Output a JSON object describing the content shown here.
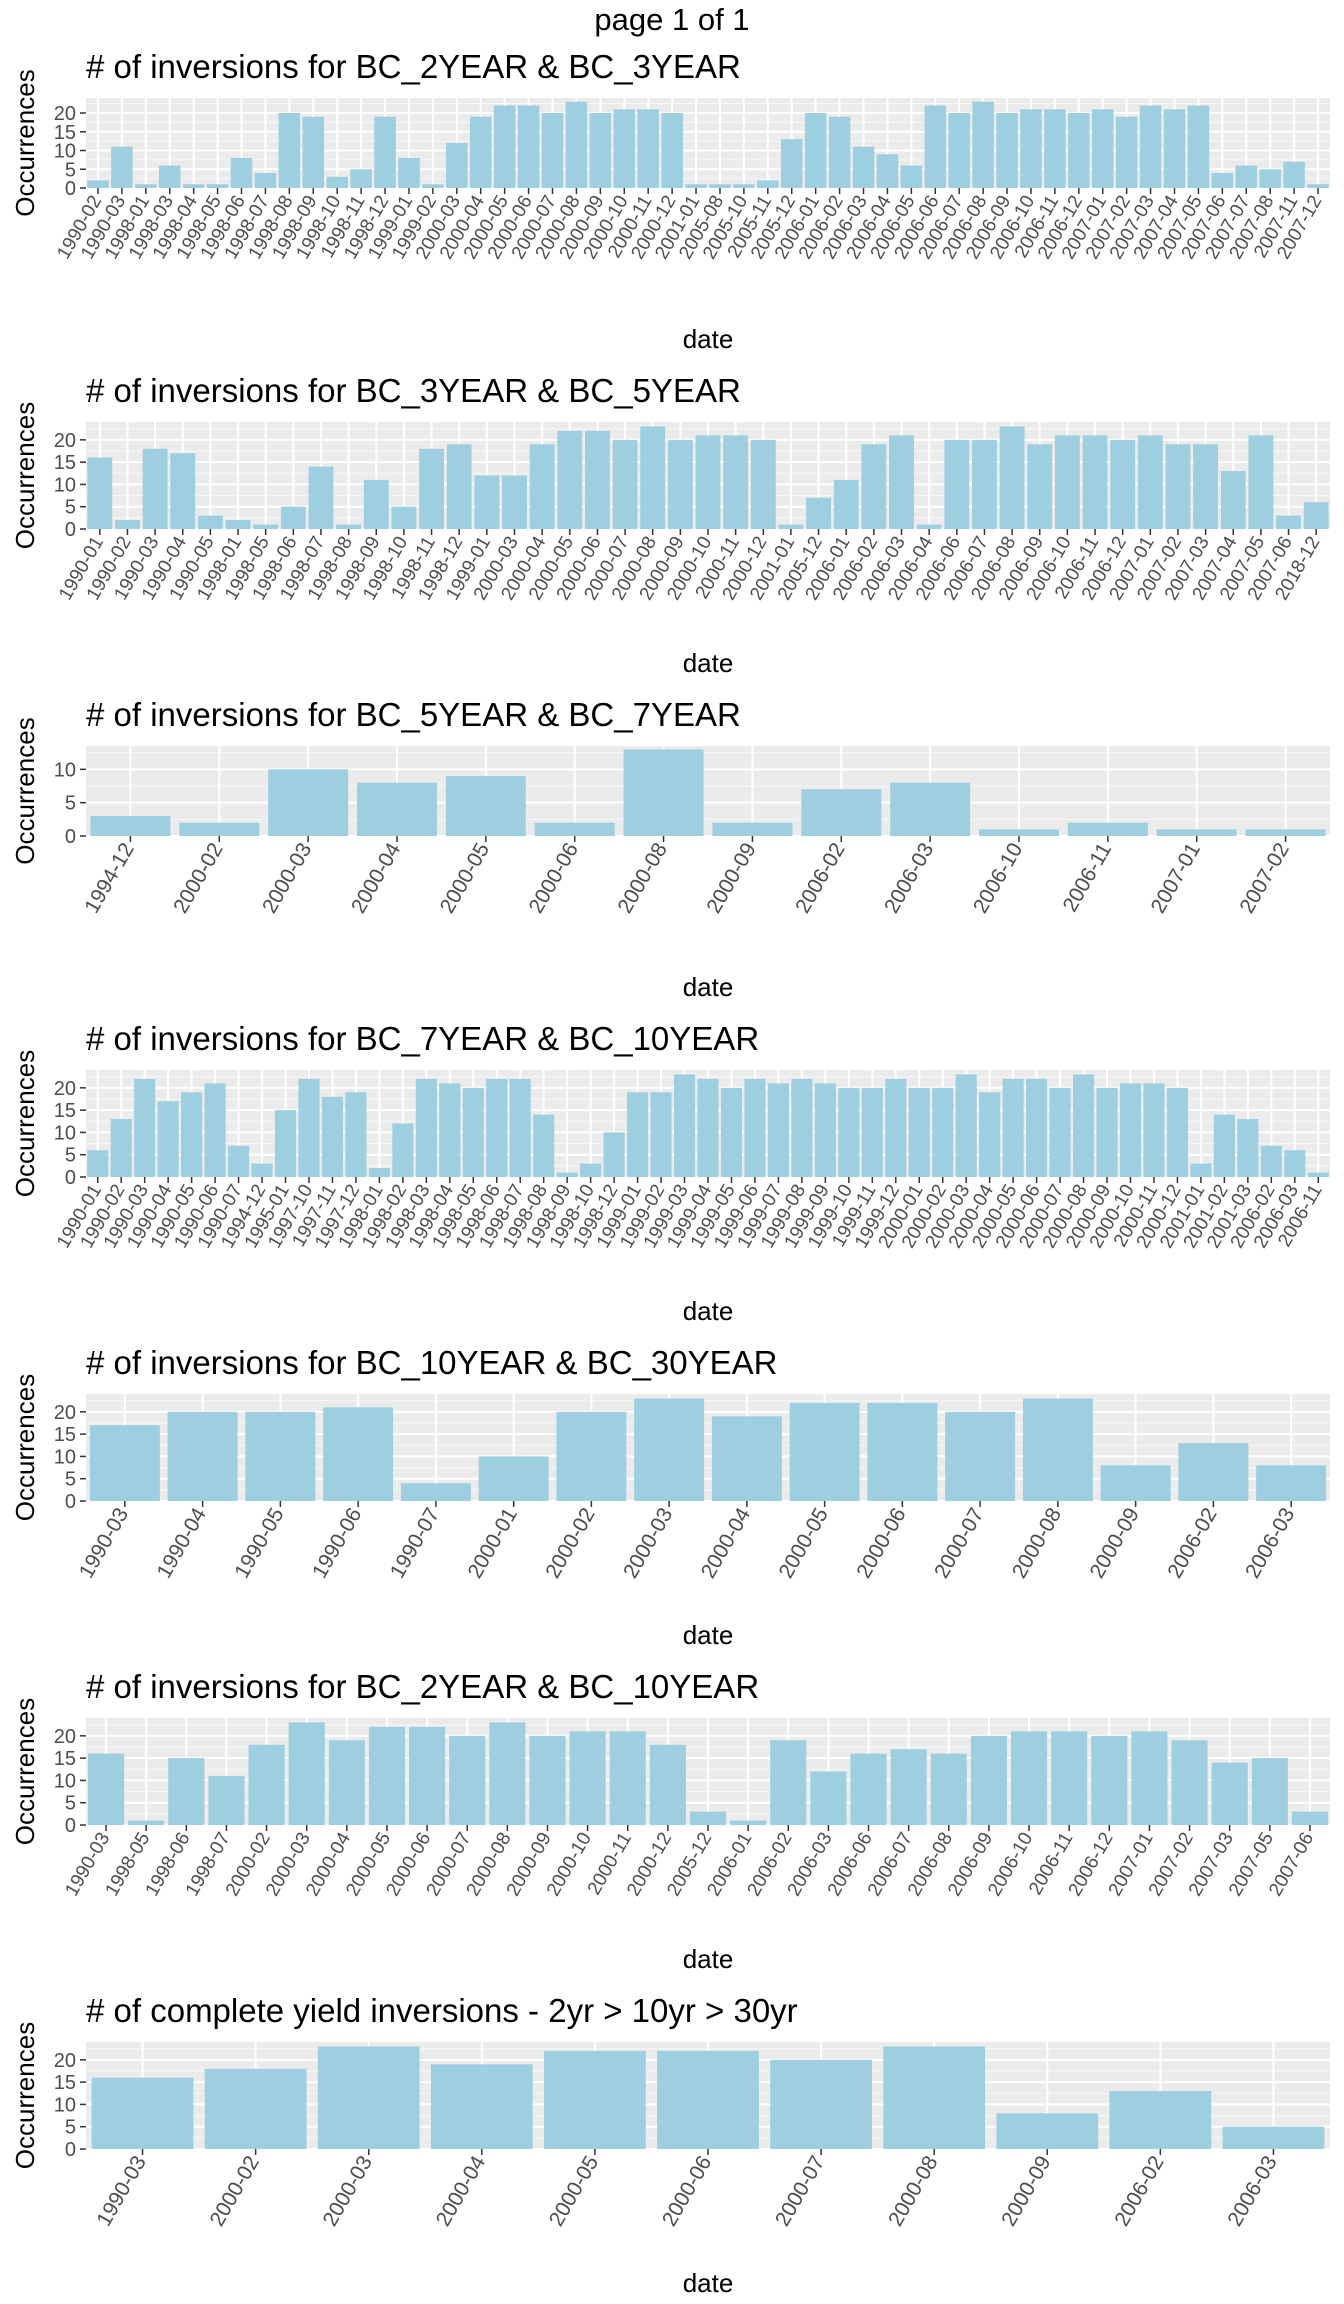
{
  "page": {
    "title": "page 1 of 1"
  },
  "chart_data": [
    {
      "type": "bar",
      "title": "# of inversions for BC_2YEAR & BC_3YEAR",
      "xlabel": "date",
      "ylabel": "Occurrences",
      "ylim": [
        0,
        24
      ],
      "yticks": [
        0,
        5,
        10,
        15,
        20
      ],
      "categories": [
        "1990-02",
        "1990-03",
        "1998-01",
        "1998-03",
        "1998-04",
        "1998-05",
        "1998-06",
        "1998-07",
        "1998-08",
        "1998-09",
        "1998-10",
        "1998-11",
        "1998-12",
        "1999-01",
        "1999-02",
        "2000-03",
        "2000-04",
        "2000-05",
        "2000-06",
        "2000-07",
        "2000-08",
        "2000-09",
        "2000-10",
        "2000-11",
        "2000-12",
        "2001-01",
        "2005-08",
        "2005-10",
        "2005-11",
        "2005-12",
        "2006-01",
        "2006-02",
        "2006-03",
        "2006-04",
        "2006-05",
        "2006-06",
        "2006-07",
        "2006-08",
        "2006-09",
        "2006-10",
        "2006-11",
        "2006-12",
        "2007-01",
        "2007-02",
        "2007-03",
        "2007-04",
        "2007-05",
        "2007-06",
        "2007-07",
        "2007-08",
        "2007-11",
        "2007-12"
      ],
      "values": [
        2,
        11,
        1,
        6,
        1,
        1,
        8,
        4,
        20,
        19,
        3,
        5,
        19,
        8,
        1,
        12,
        19,
        22,
        22,
        20,
        23,
        20,
        21,
        21,
        20,
        1,
        1,
        1,
        2,
        13,
        20,
        19,
        11,
        9,
        6,
        22,
        20,
        23,
        20,
        21,
        21,
        20,
        21,
        19,
        22,
        21,
        22,
        4,
        6,
        5,
        7,
        1
      ],
      "grid": true,
      "bar_color": "#9ecfe0",
      "panel_background": "#ebebeb"
    },
    {
      "type": "bar",
      "title": "# of inversions for BC_3YEAR & BC_5YEAR",
      "xlabel": "date",
      "ylabel": "Occurrences",
      "ylim": [
        0,
        24
      ],
      "yticks": [
        0,
        5,
        10,
        15,
        20
      ],
      "categories": [
        "1990-01",
        "1990-02",
        "1990-03",
        "1990-04",
        "1990-05",
        "1998-01",
        "1998-05",
        "1998-06",
        "1998-07",
        "1998-08",
        "1998-09",
        "1998-10",
        "1998-11",
        "1998-12",
        "1999-01",
        "2000-03",
        "2000-04",
        "2000-05",
        "2000-06",
        "2000-07",
        "2000-08",
        "2000-09",
        "2000-10",
        "2000-11",
        "2000-12",
        "2001-01",
        "2005-12",
        "2006-01",
        "2006-02",
        "2006-03",
        "2006-04",
        "2006-06",
        "2006-07",
        "2006-08",
        "2006-09",
        "2006-10",
        "2006-11",
        "2006-12",
        "2007-01",
        "2007-02",
        "2007-03",
        "2007-04",
        "2007-05",
        "2007-06",
        "2018-12"
      ],
      "values": [
        16,
        2,
        18,
        17,
        3,
        2,
        1,
        5,
        14,
        1,
        11,
        5,
        18,
        19,
        12,
        12,
        19,
        22,
        22,
        20,
        23,
        20,
        21,
        21,
        20,
        1,
        7,
        11,
        19,
        21,
        1,
        20,
        20,
        23,
        19,
        21,
        21,
        20,
        21,
        19,
        19,
        13,
        21,
        3,
        6
      ],
      "grid": true,
      "bar_color": "#9ecfe0",
      "panel_background": "#ebebeb"
    },
    {
      "type": "bar",
      "title": "# of inversions for BC_5YEAR & BC_7YEAR",
      "xlabel": "date",
      "ylabel": "Occurrences",
      "ylim": [
        0,
        13.5
      ],
      "yticks": [
        0,
        5,
        10
      ],
      "categories": [
        "1994-12",
        "2000-02",
        "2000-03",
        "2000-04",
        "2000-05",
        "2000-06",
        "2000-08",
        "2000-09",
        "2006-02",
        "2006-03",
        "2006-10",
        "2006-11",
        "2007-01",
        "2007-02"
      ],
      "values": [
        3,
        2,
        10,
        8,
        9,
        2,
        13,
        2,
        7,
        8,
        1,
        2,
        1,
        1
      ],
      "grid": true,
      "bar_color": "#9ecfe0",
      "panel_background": "#ebebeb"
    },
    {
      "type": "bar",
      "title": "# of inversions for BC_7YEAR & BC_10YEAR",
      "xlabel": "date",
      "ylabel": "Occurrences",
      "ylim": [
        0,
        24
      ],
      "yticks": [
        0,
        5,
        10,
        15,
        20
      ],
      "categories": [
        "1990-01",
        "1990-02",
        "1990-03",
        "1990-04",
        "1990-05",
        "1990-06",
        "1990-07",
        "1994-12",
        "1995-01",
        "1997-10",
        "1997-11",
        "1997-12",
        "1998-01",
        "1998-02",
        "1998-03",
        "1998-04",
        "1998-05",
        "1998-06",
        "1998-07",
        "1998-08",
        "1998-09",
        "1998-10",
        "1998-12",
        "1999-01",
        "1999-02",
        "1999-03",
        "1999-04",
        "1999-05",
        "1999-06",
        "1999-07",
        "1999-08",
        "1999-09",
        "1999-10",
        "1999-11",
        "1999-12",
        "2000-01",
        "2000-02",
        "2000-03",
        "2000-04",
        "2000-05",
        "2000-06",
        "2000-07",
        "2000-08",
        "2000-09",
        "2000-10",
        "2000-11",
        "2000-12",
        "2001-01",
        "2001-02",
        "2001-03",
        "2006-02",
        "2006-03",
        "2006-11"
      ],
      "values": [
        6,
        13,
        22,
        17,
        19,
        21,
        7,
        3,
        15,
        22,
        18,
        19,
        2,
        12,
        22,
        21,
        20,
        22,
        22,
        14,
        1,
        3,
        10,
        19,
        19,
        23,
        22,
        20,
        22,
        21,
        22,
        21,
        20,
        20,
        22,
        20,
        20,
        23,
        19,
        22,
        22,
        20,
        23,
        20,
        21,
        21,
        20,
        3,
        14,
        13,
        7,
        6,
        1
      ],
      "grid": true,
      "bar_color": "#9ecfe0",
      "panel_background": "#ebebeb"
    },
    {
      "type": "bar",
      "title": "# of inversions for BC_10YEAR & BC_30YEAR",
      "xlabel": "date",
      "ylabel": "Occurrences",
      "ylim": [
        0,
        24
      ],
      "yticks": [
        0,
        5,
        10,
        15,
        20
      ],
      "categories": [
        "1990-03",
        "1990-04",
        "1990-05",
        "1990-06",
        "1990-07",
        "2000-01",
        "2000-02",
        "2000-03",
        "2000-04",
        "2000-05",
        "2000-06",
        "2000-07",
        "2000-08",
        "2000-09",
        "2006-02",
        "2006-03"
      ],
      "values": [
        17,
        20,
        20,
        21,
        4,
        10,
        20,
        23,
        19,
        22,
        22,
        20,
        23,
        8,
        13,
        8
      ],
      "grid": true,
      "bar_color": "#9ecfe0",
      "panel_background": "#ebebeb"
    },
    {
      "type": "bar",
      "title": "# of inversions for BC_2YEAR & BC_10YEAR",
      "xlabel": "date",
      "ylabel": "Occurrences",
      "ylim": [
        0,
        24
      ],
      "yticks": [
        0,
        5,
        10,
        15,
        20
      ],
      "categories": [
        "1990-03",
        "1998-05",
        "1998-06",
        "1998-07",
        "2000-02",
        "2000-03",
        "2000-04",
        "2000-05",
        "2000-06",
        "2000-07",
        "2000-08",
        "2000-09",
        "2000-10",
        "2000-11",
        "2000-12",
        "2005-12",
        "2006-01",
        "2006-02",
        "2006-03",
        "2006-06",
        "2006-07",
        "2006-08",
        "2006-09",
        "2006-10",
        "2006-11",
        "2006-12",
        "2007-01",
        "2007-02",
        "2007-03",
        "2007-05",
        "2007-06"
      ],
      "values": [
        16,
        1,
        15,
        11,
        18,
        23,
        19,
        22,
        22,
        20,
        23,
        20,
        21,
        21,
        18,
        3,
        1,
        19,
        12,
        16,
        17,
        16,
        20,
        21,
        21,
        20,
        21,
        19,
        14,
        15,
        3
      ],
      "grid": true,
      "bar_color": "#9ecfe0",
      "panel_background": "#ebebeb"
    },
    {
      "type": "bar",
      "title": "# of complete yield inversions - 2yr > 10yr > 30yr",
      "xlabel": "date",
      "ylabel": "Occurrences",
      "ylim": [
        0,
        24
      ],
      "yticks": [
        0,
        5,
        10,
        15,
        20
      ],
      "categories": [
        "1990-03",
        "2000-02",
        "2000-03",
        "2000-04",
        "2000-05",
        "2000-06",
        "2000-07",
        "2000-08",
        "2000-09",
        "2006-02",
        "2006-03"
      ],
      "values": [
        16,
        18,
        23,
        19,
        22,
        22,
        20,
        23,
        8,
        13,
        5
      ],
      "grid": true,
      "bar_color": "#9ecfe0",
      "panel_background": "#ebebeb"
    }
  ]
}
